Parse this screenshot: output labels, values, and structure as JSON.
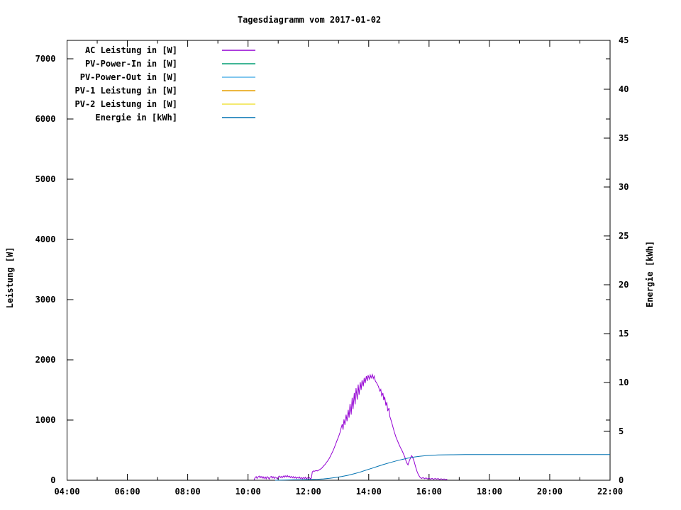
{
  "title": "Tagesdiagramm vom 2017-01-02",
  "chart_data": {
    "type": "line",
    "title": "Tagesdiagramm vom 2017-01-02",
    "background_color": "#ffffff",
    "border_color": "#000000",
    "grid": false,
    "legend_position": "top-left-inside",
    "x_axis": {
      "unit": "time",
      "range_hours": [
        4,
        22
      ],
      "major_ticks": [
        {
          "hour": 4,
          "label": "04:00"
        },
        {
          "hour": 6,
          "label": "06:00"
        },
        {
          "hour": 8,
          "label": "08:00"
        },
        {
          "hour": 10,
          "label": "10:00"
        },
        {
          "hour": 12,
          "label": "12:00"
        },
        {
          "hour": 14,
          "label": "14:00"
        },
        {
          "hour": 16,
          "label": "16:00"
        },
        {
          "hour": 18,
          "label": "18:00"
        },
        {
          "hour": 20,
          "label": "20:00"
        },
        {
          "hour": 22,
          "label": "22:00"
        }
      ],
      "minor_ticks_hours": [
        5,
        7,
        9,
        11,
        13,
        15,
        17,
        19,
        21
      ],
      "mirrored_on_top": true
    },
    "y1_axis": {
      "label": "Leistung [W]",
      "range": [
        0,
        7306
      ],
      "ticks": [
        0,
        1000,
        2000,
        3000,
        4000,
        5000,
        6000,
        7000
      ],
      "mirrored_on_right": true
    },
    "y2_axis": {
      "label": "Energie [kWh]",
      "range": [
        0,
        45
      ],
      "ticks": [
        0,
        5,
        10,
        15,
        20,
        25,
        30,
        35,
        40,
        45
      ]
    },
    "series": [
      {
        "name": "AC Leistung in [W]",
        "color": "#9400D3",
        "axis": "y1",
        "points": [
          [
            10.2,
            5
          ],
          [
            10.23,
            40
          ],
          [
            10.27,
            60
          ],
          [
            10.3,
            30
          ],
          [
            10.33,
            55
          ],
          [
            10.37,
            70
          ],
          [
            10.4,
            40
          ],
          [
            10.43,
            65
          ],
          [
            10.47,
            35
          ],
          [
            10.5,
            60
          ],
          [
            10.53,
            30
          ],
          [
            10.57,
            55
          ],
          [
            10.6,
            25
          ],
          [
            10.63,
            60
          ],
          [
            10.67,
            45
          ],
          [
            10.7,
            20
          ],
          [
            10.73,
            50
          ],
          [
            10.77,
            65
          ],
          [
            10.8,
            35
          ],
          [
            10.83,
            60
          ],
          [
            10.87,
            30
          ],
          [
            10.9,
            55
          ],
          [
            10.93,
            45
          ],
          [
            10.97,
            25
          ],
          [
            11.0,
            50
          ],
          [
            11.03,
            70
          ],
          [
            11.07,
            45
          ],
          [
            11.1,
            65
          ],
          [
            11.13,
            40
          ],
          [
            11.17,
            70
          ],
          [
            11.2,
            50
          ],
          [
            11.23,
            75
          ],
          [
            11.27,
            55
          ],
          [
            11.3,
            80
          ],
          [
            11.33,
            55
          ],
          [
            11.37,
            70
          ],
          [
            11.4,
            45
          ],
          [
            11.43,
            65
          ],
          [
            11.47,
            40
          ],
          [
            11.5,
            60
          ],
          [
            11.53,
            35
          ],
          [
            11.57,
            55
          ],
          [
            11.6,
            30
          ],
          [
            11.63,
            50
          ],
          [
            11.67,
            35
          ],
          [
            11.7,
            55
          ],
          [
            11.73,
            30
          ],
          [
            11.77,
            45
          ],
          [
            11.8,
            25
          ],
          [
            11.83,
            45
          ],
          [
            11.87,
            30
          ],
          [
            11.9,
            50
          ],
          [
            11.93,
            25
          ],
          [
            11.97,
            40
          ],
          [
            12.0,
            30
          ],
          [
            12.03,
            45
          ],
          [
            12.07,
            25
          ],
          [
            12.1,
            40
          ],
          [
            12.13,
            140
          ],
          [
            12.17,
            155
          ],
          [
            12.2,
            150
          ],
          [
            12.25,
            160
          ],
          [
            12.3,
            155
          ],
          [
            12.35,
            170
          ],
          [
            12.4,
            185
          ],
          [
            12.45,
            205
          ],
          [
            12.5,
            235
          ],
          [
            12.55,
            260
          ],
          [
            12.6,
            295
          ],
          [
            12.65,
            330
          ],
          [
            12.7,
            370
          ],
          [
            12.75,
            420
          ],
          [
            12.8,
            470
          ],
          [
            12.85,
            530
          ],
          [
            12.9,
            595
          ],
          [
            12.95,
            660
          ],
          [
            13.0,
            725
          ],
          [
            13.05,
            795
          ],
          [
            13.08,
            860
          ],
          [
            13.12,
            930
          ],
          [
            13.15,
            840
          ],
          [
            13.18,
            1010
          ],
          [
            13.21,
            920
          ],
          [
            13.25,
            1090
          ],
          [
            13.28,
            980
          ],
          [
            13.32,
            1170
          ],
          [
            13.35,
            1040
          ],
          [
            13.38,
            1270
          ],
          [
            13.42,
            1090
          ],
          [
            13.45,
            1370
          ],
          [
            13.48,
            1180
          ],
          [
            13.52,
            1450
          ],
          [
            13.55,
            1260
          ],
          [
            13.58,
            1530
          ],
          [
            13.62,
            1340
          ],
          [
            13.65,
            1590
          ],
          [
            13.68,
            1420
          ],
          [
            13.72,
            1630
          ],
          [
            13.75,
            1500
          ],
          [
            13.78,
            1660
          ],
          [
            13.82,
            1560
          ],
          [
            13.85,
            1700
          ],
          [
            13.88,
            1610
          ],
          [
            13.92,
            1730
          ],
          [
            13.95,
            1650
          ],
          [
            13.98,
            1745
          ],
          [
            14.02,
            1680
          ],
          [
            14.05,
            1750
          ],
          [
            14.08,
            1700
          ],
          [
            14.12,
            1755
          ],
          [
            14.15,
            1690
          ],
          [
            14.18,
            1730
          ],
          [
            14.22,
            1650
          ],
          [
            14.27,
            1610
          ],
          [
            14.32,
            1560
          ],
          [
            14.37,
            1480
          ],
          [
            14.4,
            1510
          ],
          [
            14.43,
            1400
          ],
          [
            14.47,
            1450
          ],
          [
            14.5,
            1330
          ],
          [
            14.53,
            1390
          ],
          [
            14.57,
            1240
          ],
          [
            14.6,
            1300
          ],
          [
            14.63,
            1150
          ],
          [
            14.67,
            1200
          ],
          [
            14.7,
            1060
          ],
          [
            14.75,
            980
          ],
          [
            14.8,
            890
          ],
          [
            14.85,
            800
          ],
          [
            14.9,
            720
          ],
          [
            14.95,
            660
          ],
          [
            15.0,
            600
          ],
          [
            15.05,
            545
          ],
          [
            15.1,
            495
          ],
          [
            15.15,
            440
          ],
          [
            15.2,
            380
          ],
          [
            15.25,
            300
          ],
          [
            15.3,
            255
          ],
          [
            15.35,
            330
          ],
          [
            15.42,
            410
          ],
          [
            15.45,
            390
          ],
          [
            15.5,
            320
          ],
          [
            15.55,
            230
          ],
          [
            15.6,
            150
          ],
          [
            15.65,
            90
          ],
          [
            15.7,
            50
          ],
          [
            15.75,
            30
          ],
          [
            15.8,
            45
          ],
          [
            15.85,
            25
          ],
          [
            15.9,
            40
          ],
          [
            15.95,
            20
          ],
          [
            16.0,
            35
          ],
          [
            16.05,
            18
          ],
          [
            16.1,
            32
          ],
          [
            16.15,
            15
          ],
          [
            16.2,
            30
          ],
          [
            16.25,
            18
          ],
          [
            16.3,
            28
          ],
          [
            16.35,
            12
          ],
          [
            16.4,
            25
          ],
          [
            16.45,
            15
          ],
          [
            16.5,
            22
          ],
          [
            16.55,
            10
          ],
          [
            16.6,
            18
          ]
        ]
      },
      {
        "name": "PV-Power-In in [W]",
        "color": "#009E73",
        "axis": "y1",
        "points": []
      },
      {
        "name": "PV-Power-Out in [W]",
        "color": "#56B4E9",
        "axis": "y1",
        "points": []
      },
      {
        "name": "PV-1 Leistung in [W]",
        "color": "#E69F00",
        "axis": "y1",
        "points": []
      },
      {
        "name": "PV-2 Leistung in [W]",
        "color": "#F0E442",
        "axis": "y1",
        "points": []
      },
      {
        "name": "Energie in [kWh]",
        "color": "#0072B2",
        "axis": "y2",
        "points": [
          [
            10.9,
            0.0
          ],
          [
            11.2,
            0.02
          ],
          [
            11.5,
            0.04
          ],
          [
            11.8,
            0.06
          ],
          [
            12.1,
            0.08
          ],
          [
            12.3,
            0.1
          ],
          [
            12.5,
            0.14
          ],
          [
            12.7,
            0.2
          ],
          [
            12.9,
            0.28
          ],
          [
            13.1,
            0.38
          ],
          [
            13.3,
            0.5
          ],
          [
            13.5,
            0.65
          ],
          [
            13.7,
            0.82
          ],
          [
            13.9,
            1.02
          ],
          [
            14.1,
            1.22
          ],
          [
            14.3,
            1.42
          ],
          [
            14.5,
            1.62
          ],
          [
            14.7,
            1.8
          ],
          [
            14.9,
            1.97
          ],
          [
            15.1,
            2.12
          ],
          [
            15.3,
            2.26
          ],
          [
            15.5,
            2.38
          ],
          [
            15.7,
            2.46
          ],
          [
            15.9,
            2.52
          ],
          [
            16.1,
            2.56
          ],
          [
            16.3,
            2.59
          ],
          [
            16.5,
            2.6
          ],
          [
            16.8,
            2.61
          ],
          [
            17.2,
            2.62
          ],
          [
            18.0,
            2.62
          ],
          [
            19.0,
            2.62
          ],
          [
            20.0,
            2.62
          ],
          [
            21.0,
            2.62
          ],
          [
            22.0,
            2.62
          ]
        ]
      }
    ]
  }
}
